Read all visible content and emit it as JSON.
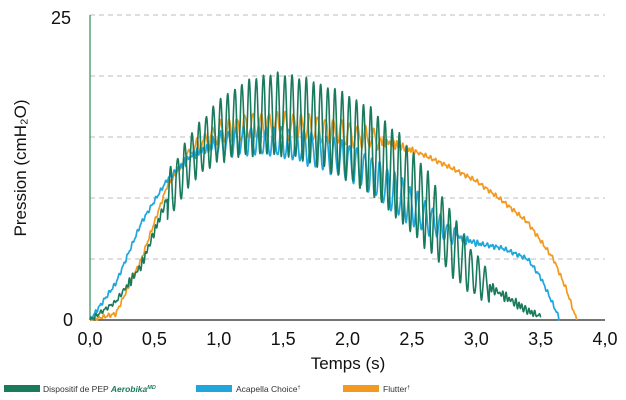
{
  "chart_data": {
    "type": "line",
    "xlabel": "Temps (s)",
    "ylabel": "Pression (cmH₂O)",
    "xlim": [
      0,
      4
    ],
    "ylim": [
      0,
      25
    ],
    "x_ticks": [
      "0,0",
      "0,5",
      "1,0",
      "1,5",
      "2,0",
      "2,5",
      "3,0",
      "3,5",
      "4,0"
    ],
    "y_ticks": [
      "0",
      "25"
    ],
    "grid": "horizontal dashed",
    "legend_position": "bottom",
    "legend": {
      "aerobika_prefix": "Dispositif de PEP ",
      "aerobika_brand": "Aerobika",
      "aerobika_sup": "MD",
      "acapella_name": "Acapella Choice",
      "acapella_sup": "†",
      "flutter_name": "Flutter",
      "flutter_sup": "†"
    },
    "series": [
      {
        "color": "#1a7a5c",
        "oscillation": {
          "freq_hz": 18,
          "from_s": 0.6,
          "to_s": 3.1
        },
        "upper": [
          [
            0,
            0
          ],
          [
            0.2,
            1.5
          ],
          [
            0.4,
            5
          ],
          [
            0.6,
            12
          ],
          [
            0.8,
            15.5
          ],
          [
            1.0,
            18
          ],
          [
            1.2,
            19.5
          ],
          [
            1.4,
            20.2
          ],
          [
            1.6,
            20
          ],
          [
            1.8,
            19.3
          ],
          [
            2.0,
            18.5
          ],
          [
            2.2,
            17.2
          ],
          [
            2.4,
            15.2
          ],
          [
            2.6,
            12.5
          ],
          [
            2.8,
            9
          ],
          [
            2.95,
            6
          ],
          [
            3.1,
            4
          ],
          [
            3.25,
            2.5
          ],
          [
            3.4,
            1
          ],
          [
            3.5,
            0.3
          ]
        ],
        "lower": [
          [
            0,
            0
          ],
          [
            0.2,
            1.5
          ],
          [
            0.4,
            4
          ],
          [
            0.6,
            8
          ],
          [
            0.8,
            11.5
          ],
          [
            1.0,
            13
          ],
          [
            1.2,
            13.5
          ],
          [
            1.4,
            13.6
          ],
          [
            1.6,
            13.3
          ],
          [
            1.8,
            12.5
          ],
          [
            2.0,
            11.5
          ],
          [
            2.2,
            10.2
          ],
          [
            2.4,
            8.2
          ],
          [
            2.6,
            6
          ],
          [
            2.8,
            3.8
          ],
          [
            2.95,
            2.2
          ],
          [
            3.1,
            1.5
          ],
          [
            3.25,
            1
          ],
          [
            3.4,
            0.5
          ],
          [
            3.5,
            0.3
          ]
        ]
      },
      {
        "color": "#1fa6dc",
        "oscillation": {
          "freq_hz": 17,
          "from_s": 0.95,
          "to_s": 2.85
        },
        "upper": [
          [
            0,
            0
          ],
          [
            0.2,
            3
          ],
          [
            0.4,
            8
          ],
          [
            0.6,
            11.5
          ],
          [
            0.8,
            14
          ],
          [
            1.0,
            15.3
          ],
          [
            1.2,
            15.8
          ],
          [
            1.4,
            15.9
          ],
          [
            1.6,
            15.7
          ],
          [
            1.8,
            15.2
          ],
          [
            2.0,
            14.5
          ],
          [
            2.2,
            13.3
          ],
          [
            2.4,
            11.8
          ],
          [
            2.6,
            9.8
          ],
          [
            2.8,
            7.8
          ],
          [
            3.0,
            6.4
          ],
          [
            3.2,
            5.9
          ],
          [
            3.4,
            5
          ],
          [
            3.5,
            3.5
          ],
          [
            3.6,
            1.2
          ],
          [
            3.65,
            0
          ]
        ],
        "lower": [
          [
            0,
            0
          ],
          [
            0.2,
            3
          ],
          [
            0.4,
            8
          ],
          [
            0.6,
            11.5
          ],
          [
            0.8,
            13.2
          ],
          [
            1.0,
            13.4
          ],
          [
            1.2,
            13.6
          ],
          [
            1.4,
            13.5
          ],
          [
            1.6,
            13.1
          ],
          [
            1.8,
            12.4
          ],
          [
            2.0,
            11.5
          ],
          [
            2.2,
            10.3
          ],
          [
            2.4,
            8.5
          ],
          [
            2.6,
            7.2
          ],
          [
            2.8,
            6.3
          ],
          [
            3.0,
            6.2
          ],
          [
            3.2,
            5.9
          ],
          [
            3.4,
            5
          ],
          [
            3.5,
            3.5
          ],
          [
            3.6,
            1.2
          ],
          [
            3.65,
            0
          ]
        ]
      },
      {
        "color": "#f29a1f",
        "oscillation": {
          "freq_hz": 16,
          "from_s": 0.75,
          "to_s": 2.25
        },
        "upper": [
          [
            0,
            0
          ],
          [
            0.2,
            0.5
          ],
          [
            0.4,
            5
          ],
          [
            0.6,
            11
          ],
          [
            0.8,
            14.5
          ],
          [
            1.0,
            16.2
          ],
          [
            1.2,
            16.8
          ],
          [
            1.4,
            17
          ],
          [
            1.6,
            16.9
          ],
          [
            1.8,
            16.6
          ],
          [
            2.0,
            16.2
          ],
          [
            2.2,
            15.6
          ],
          [
            2.4,
            14.6
          ],
          [
            2.6,
            13.5
          ],
          [
            2.8,
            12.5
          ],
          [
            3.0,
            11.4
          ],
          [
            3.2,
            9.8
          ],
          [
            3.4,
            8
          ],
          [
            3.6,
            5
          ],
          [
            3.7,
            2.5
          ],
          [
            3.78,
            0
          ]
        ],
        "lower": [
          [
            0,
            0
          ],
          [
            0.2,
            0.5
          ],
          [
            0.4,
            5
          ],
          [
            0.6,
            11
          ],
          [
            0.8,
            13.6
          ],
          [
            1.0,
            14.5
          ],
          [
            1.2,
            14.8
          ],
          [
            1.4,
            14.9
          ],
          [
            1.6,
            14.8
          ],
          [
            1.8,
            14.6
          ],
          [
            2.0,
            14.3
          ],
          [
            2.2,
            14.1
          ],
          [
            2.4,
            14
          ],
          [
            2.6,
            13.5
          ],
          [
            2.8,
            12.5
          ],
          [
            3.0,
            11.4
          ],
          [
            3.2,
            9.8
          ],
          [
            3.4,
            8
          ],
          [
            3.6,
            5
          ],
          [
            3.7,
            2.5
          ],
          [
            3.78,
            0
          ]
        ]
      }
    ]
  }
}
